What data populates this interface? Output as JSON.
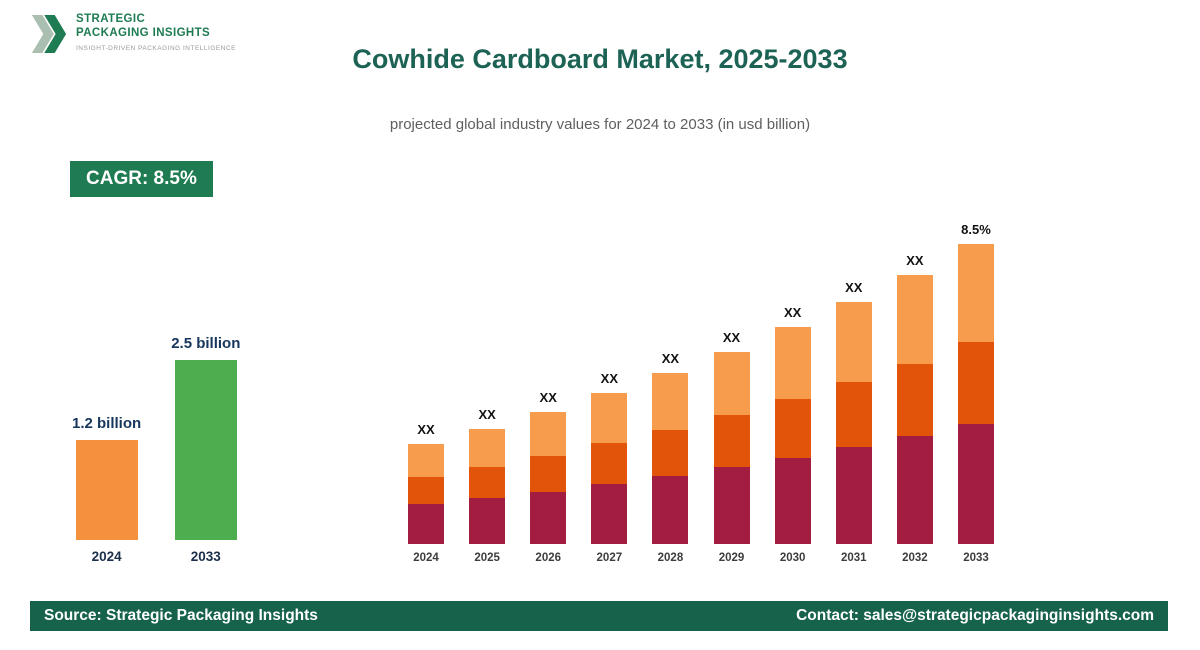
{
  "brand": {
    "line1": "STRATEGIC",
    "line2": "PACKAGING INSIGHTS",
    "tagline": "INSIGHT-DRIVEN PACKAGING INTELLIGENCE"
  },
  "header": {
    "title": "Cowhide Cardboard Market, 2025-2033",
    "subtitle": "projected global industry values for 2024 to 2033 (in usd billion)"
  },
  "cagr_badge": {
    "label": "CAGR: 8.5%"
  },
  "footer": {
    "source": "Source: Strategic Packaging Insights",
    "contact": "Contact: sales@strategicpackaginginsights.com"
  },
  "colors": {
    "brand_green": "#1e7b52",
    "footer_green": "#17624b",
    "title_teal": "#1d6355",
    "mini_orange": "#f5913d",
    "mini_green": "#4cae4f",
    "stack_bottom": "#a21d3f",
    "stack_middle": "#e3540b",
    "stack_top": "#f79b4d",
    "label_navy": "#16365c"
  },
  "chart_data": [
    {
      "type": "bar",
      "name": "growth-comparison",
      "unit": "usd billion",
      "categories": [
        "2024",
        "2033"
      ],
      "values": [
        1.2,
        2.5
      ],
      "value_labels": [
        "1.2 billion",
        "2.5 billion"
      ],
      "bar_colors": [
        "#f5913d",
        "#4cae4f"
      ]
    },
    {
      "type": "bar",
      "stacked": true,
      "name": "yearly-stacked",
      "unit": "usd billion",
      "categories": [
        "2024",
        "2025",
        "2026",
        "2027",
        "2028",
        "2029",
        "2030",
        "2031",
        "2032",
        "2033"
      ],
      "series": [
        {
          "name": "segment-1",
          "color": "#a21d3f",
          "values": [
            0.48,
            0.52,
            0.56,
            0.61,
            0.66,
            0.72,
            0.78,
            0.85,
            0.92,
            1.0
          ]
        },
        {
          "name": "segment-2",
          "color": "#e3540b",
          "values": [
            0.32,
            0.35,
            0.38,
            0.41,
            0.45,
            0.49,
            0.53,
            0.57,
            0.62,
            0.68
          ]
        },
        {
          "name": "segment-3",
          "color": "#f79b4d",
          "values": [
            0.4,
            0.43,
            0.47,
            0.51,
            0.55,
            0.59,
            0.65,
            0.7,
            0.76,
            0.82
          ]
        }
      ],
      "totals_estimated": [
        1.2,
        1.3,
        1.41,
        1.53,
        1.66,
        1.8,
        1.96,
        2.12,
        2.3,
        2.5
      ],
      "bar_labels": [
        "XX",
        "XX",
        "XX",
        "XX",
        "XX",
        "XX",
        "XX",
        "XX",
        "XX",
        "8.5%"
      ]
    }
  ]
}
